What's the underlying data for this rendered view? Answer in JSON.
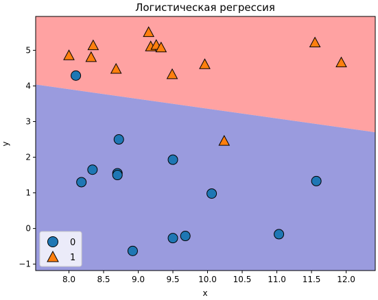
{
  "chart_data": {
    "type": "scatter",
    "title": "Логистическая регрессия",
    "xlabel": "x",
    "ylabel": "y",
    "xlim": [
      7.52,
      12.42
    ],
    "ylim": [
      -1.18,
      5.95
    ],
    "x_ticks": [
      8.0,
      8.5,
      9.0,
      9.5,
      10.0,
      10.5,
      11.0,
      11.5,
      12.0
    ],
    "x_tick_labels": [
      "8.0",
      "8.5",
      "9.0",
      "9.5",
      "10.0",
      "10.5",
      "11.0",
      "11.5",
      "12.0"
    ],
    "y_ticks": [
      -1,
      0,
      1,
      2,
      3,
      4,
      5
    ],
    "y_tick_labels": [
      "−1",
      "0",
      "1",
      "2",
      "3",
      "4",
      "5"
    ],
    "grid": false,
    "legend_position": "lower-left",
    "decision_boundary": {
      "line": [
        [
          7.52,
          4.04
        ],
        [
          12.42,
          2.7
        ]
      ],
      "upper_region_color": "#ffa2a2",
      "lower_region_color": "#9a9bde"
    },
    "series": [
      {
        "name": "0",
        "marker": "circle",
        "color": "#1f77b4",
        "points": [
          [
            8.1,
            4.29
          ],
          [
            8.72,
            2.5
          ],
          [
            8.34,
            1.65
          ],
          [
            8.7,
            1.55
          ],
          [
            8.18,
            1.3
          ],
          [
            8.7,
            1.5
          ],
          [
            9.5,
            1.93
          ],
          [
            10.06,
            0.98
          ],
          [
            11.57,
            1.33
          ],
          [
            9.68,
            -0.21
          ],
          [
            9.5,
            -0.27
          ],
          [
            11.03,
            -0.16
          ],
          [
            8.92,
            -0.63
          ]
        ]
      },
      {
        "name": "1",
        "marker": "triangle",
        "color": "#ff7f0e",
        "points": [
          [
            8.0,
            4.85
          ],
          [
            8.35,
            5.13
          ],
          [
            8.32,
            4.8
          ],
          [
            8.68,
            4.47
          ],
          [
            9.15,
            5.5
          ],
          [
            9.18,
            5.1
          ],
          [
            9.26,
            5.14
          ],
          [
            9.33,
            5.07
          ],
          [
            9.49,
            4.32
          ],
          [
            9.96,
            4.6
          ],
          [
            10.24,
            2.45
          ],
          [
            11.55,
            5.21
          ],
          [
            11.93,
            4.65
          ]
        ]
      }
    ]
  }
}
